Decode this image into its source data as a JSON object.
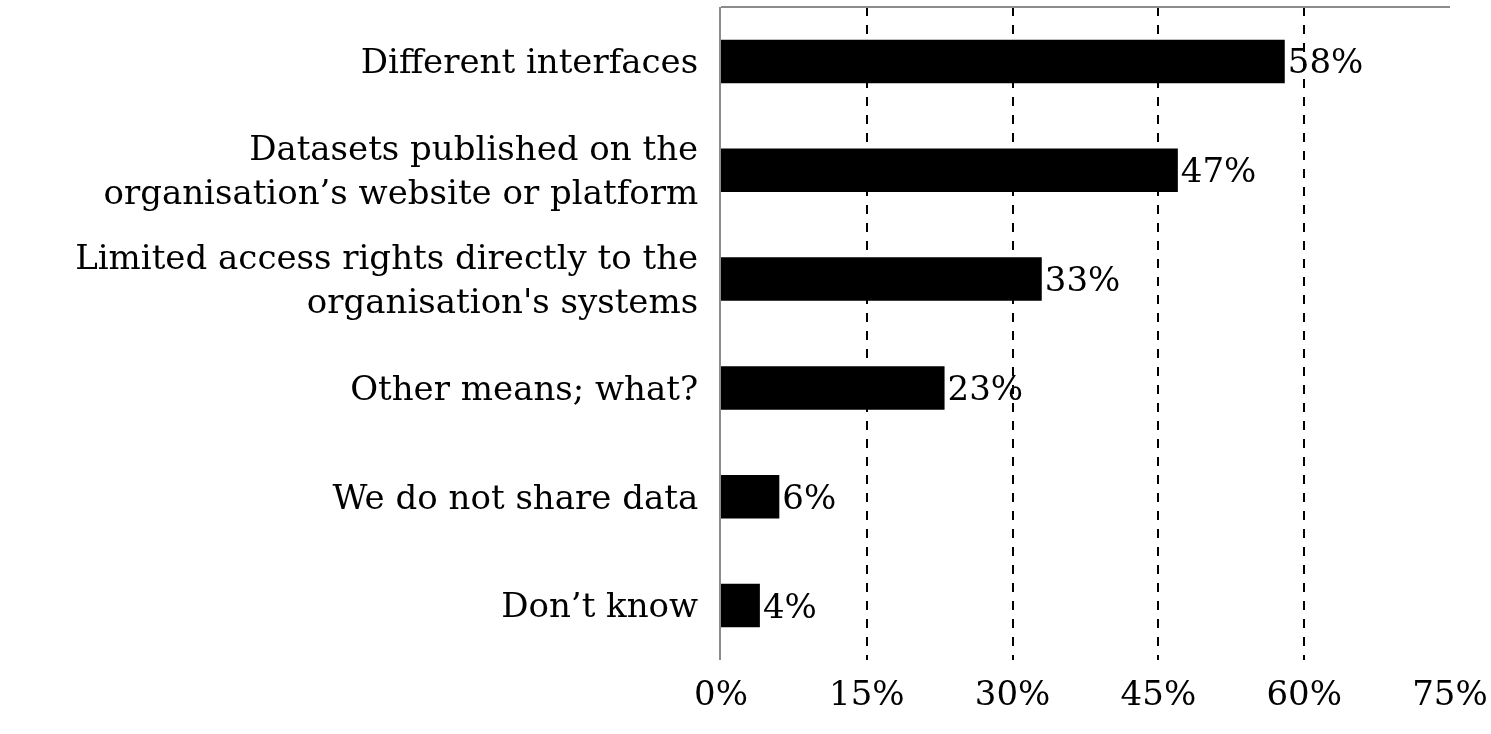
{
  "chart_data": {
    "type": "bar",
    "orientation": "horizontal",
    "categories": [
      "Different interfaces",
      "Datasets published on the organisation’s website or platform",
      "Limited access rights directly to the organisation's systems",
      "Other means; what?",
      "We do not share data",
      "Don’t know"
    ],
    "values": [
      58,
      47,
      33,
      23,
      6,
      4
    ],
    "color": "#000000",
    "value_labels": [
      "58%",
      "47%",
      "33%",
      "23%",
      "6%",
      "4%"
    ],
    "xlim": [
      0,
      75
    ],
    "xticks": [
      {
        "value": 0,
        "label": "0%"
      },
      {
        "value": 15,
        "label": "15%"
      },
      {
        "value": 30,
        "label": "30%"
      },
      {
        "value": 45,
        "label": "45%"
      },
      {
        "value": 60,
        "label": "60%"
      },
      {
        "value": 75,
        "label": "75%"
      }
    ],
    "grid": "x",
    "line_style": "dashed"
  }
}
